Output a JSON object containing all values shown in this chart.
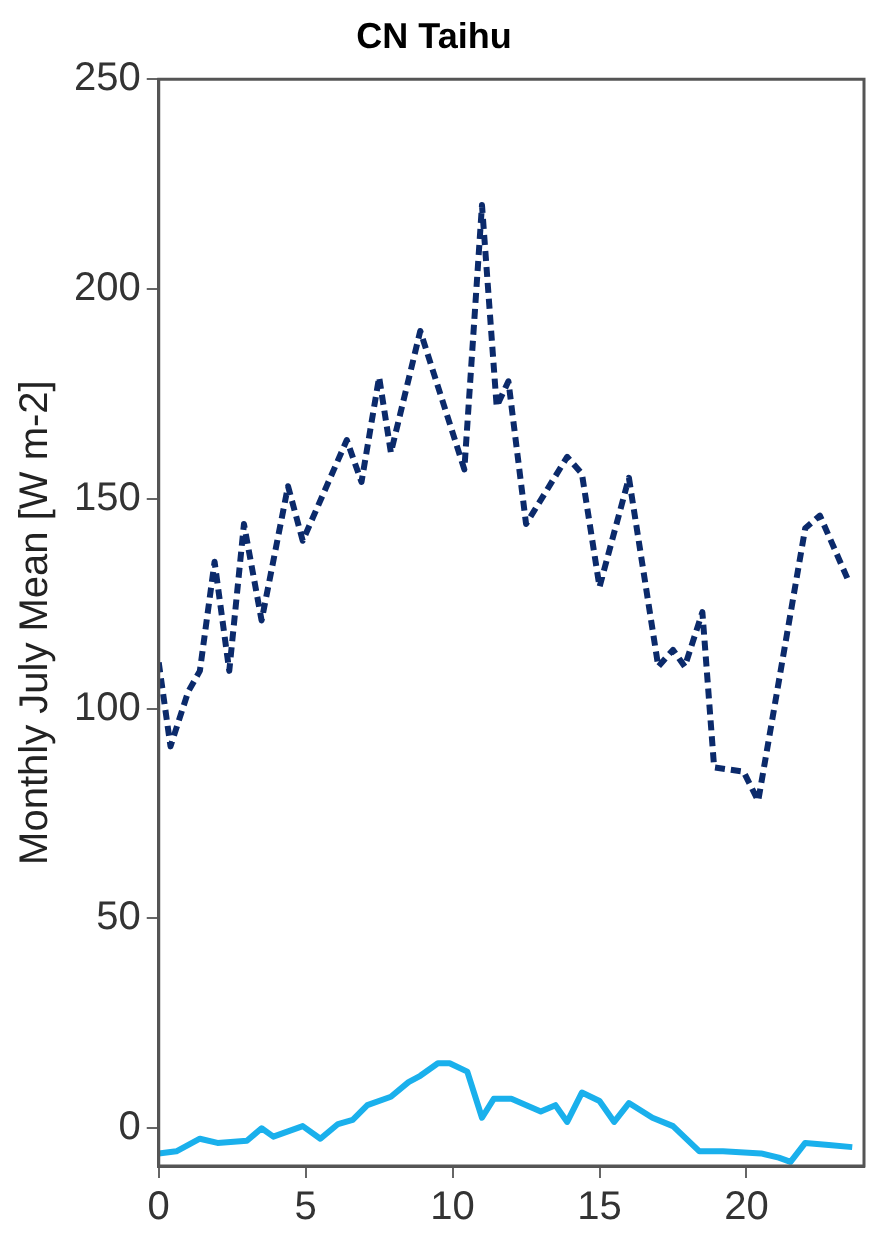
{
  "chart_data": {
    "type": "line",
    "title": "CN Taihu",
    "ylabel": "Monthly July Mean [W m-2]",
    "xlim": [
      0,
      24
    ],
    "xticks": [
      0,
      5,
      10,
      15,
      20
    ],
    "ylim": [
      -9,
      250
    ],
    "yticks": [
      0,
      50,
      100,
      150,
      200,
      250
    ],
    "grid": false,
    "legend": false,
    "marker": "none",
    "series": [
      {
        "color": "#0b2a6b",
        "line_style": "dashed",
        "x": [
          0,
          0.4,
          1,
          1.4,
          1.9,
          2.4,
          2.9,
          3.5,
          4.4,
          4.9,
          6.4,
          6.9,
          7.5,
          7.9,
          8.9,
          10.4,
          11,
          11.5,
          11.9,
          12.5,
          13.9,
          14.4,
          15,
          16,
          17,
          17.5,
          17.9,
          18.5,
          18.9,
          19.9,
          20.4,
          22,
          22.5,
          23.5
        ],
        "values": [
          111,
          91,
          104,
          109,
          135,
          109,
          144,
          121,
          153,
          140,
          164,
          154,
          179,
          161,
          190,
          157,
          220,
          172,
          178,
          144,
          160,
          156,
          129,
          155,
          110,
          114,
          110,
          123,
          86,
          85,
          78,
          143,
          146,
          130
        ]
      },
      {
        "color": "#1ab0ec",
        "line_style": "solid",
        "x": [
          0,
          0.6,
          1.4,
          2,
          3,
          3.5,
          3.9,
          4.9,
          5.5,
          6.1,
          6.6,
          7.1,
          7.9,
          8.5,
          8.9,
          9.5,
          9.9,
          10.5,
          11,
          11.4,
          12,
          13,
          13.5,
          13.9,
          14.4,
          15,
          15.5,
          16,
          16.8,
          17.5,
          18.4,
          19.2,
          20.5,
          21.1,
          21.5,
          22,
          22.8,
          23.6
        ],
        "values": [
          -6,
          -5.5,
          -2.5,
          -3.5,
          -3,
          0,
          -2,
          0.5,
          -2.5,
          1,
          2,
          5.5,
          7.5,
          11,
          12.5,
          15.5,
          15.5,
          13.5,
          2.5,
          7,
          7,
          4,
          5.5,
          1.5,
          8.5,
          6.5,
          1.5,
          6,
          2.5,
          0.5,
          -5.5,
          -5.5,
          -6,
          -7,
          -8,
          -3.5,
          -4,
          -4.5
        ]
      }
    ]
  }
}
